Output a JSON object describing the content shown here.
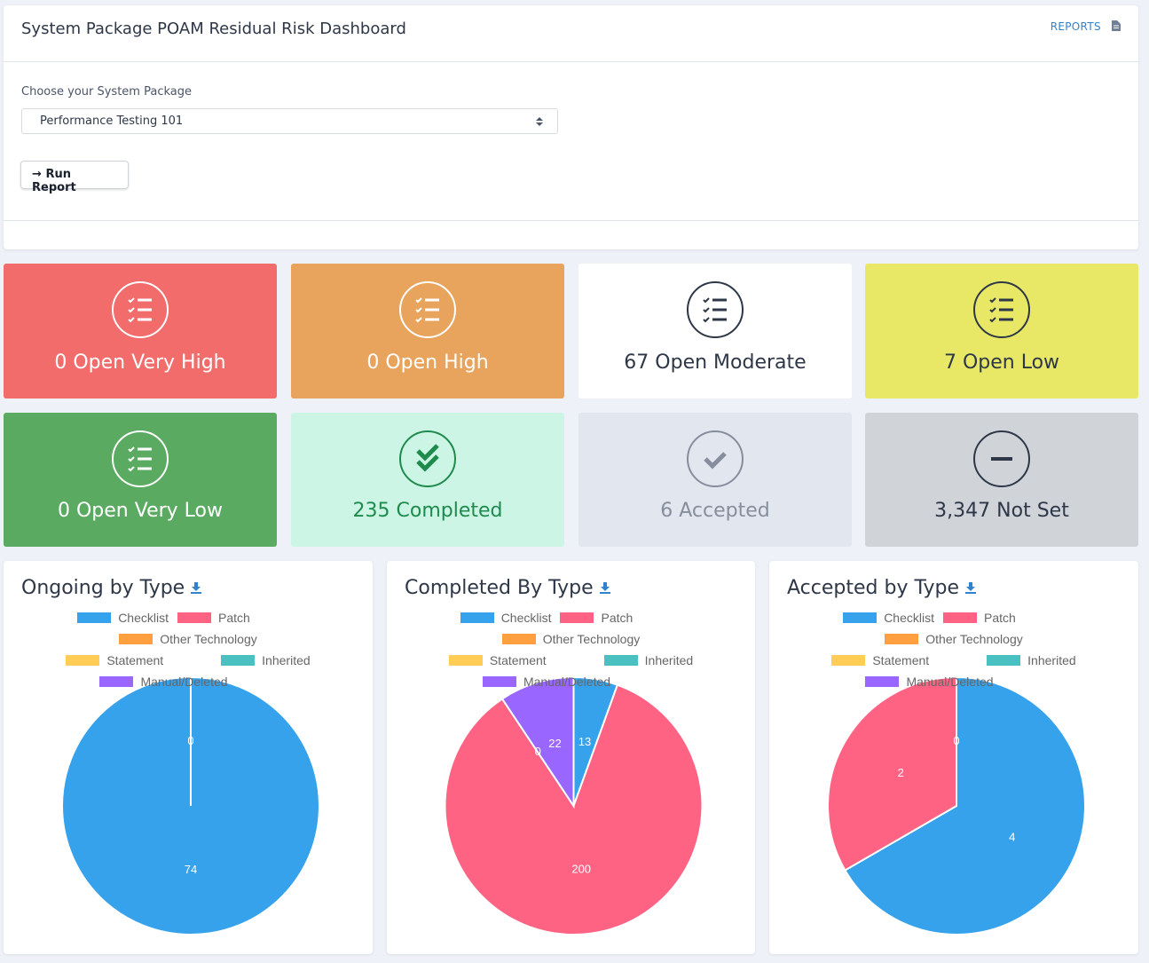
{
  "header": {
    "title": "System Package POAM Residual Risk Dashboard",
    "link": "REPORTS"
  },
  "form": {
    "label": "Choose your System Package",
    "selected": "Performance Testing 101",
    "button": "Run Report"
  },
  "cards": [
    {
      "count": 0,
      "label": "Open Very High"
    },
    {
      "count": 0,
      "label": "Open High"
    },
    {
      "count": 67,
      "label": "Open Moderate"
    },
    {
      "count": 7,
      "label": "Open Low"
    },
    {
      "count": 0,
      "label": "Open Very Low"
    },
    {
      "count": 235,
      "label": "Completed"
    },
    {
      "count": 6,
      "label": "Accepted"
    },
    {
      "count": "3,347",
      "label": "Not Set"
    }
  ],
  "chart_data": [
    {
      "type": "pie",
      "title": "Ongoing by Type",
      "categories": [
        "Checklist",
        "Patch",
        "Other Technology",
        "Statement",
        "Inherited",
        "Manual/Deleted"
      ],
      "colors": [
        "#36a2eb",
        "#ff6384",
        "#ff9f40",
        "#ffcd56",
        "#4bc0c0",
        "#9966ff"
      ],
      "values": [
        74,
        0,
        null,
        null,
        null,
        null
      ]
    },
    {
      "type": "pie",
      "title": "Completed By Type",
      "categories": [
        "Checklist",
        "Patch",
        "Other Technology",
        "Statement",
        "Inherited",
        "Manual/Deleted"
      ],
      "colors": [
        "#36a2eb",
        "#ff6384",
        "#ff9f40",
        "#ffcd56",
        "#4bc0c0",
        "#9966ff"
      ],
      "values": [
        13,
        200,
        null,
        null,
        0,
        22
      ]
    },
    {
      "type": "pie",
      "title": "Accepted by Type",
      "categories": [
        "Checklist",
        "Patch",
        "Other Technology",
        "Statement",
        "Inherited",
        "Manual/Deleted"
      ],
      "colors": [
        "#36a2eb",
        "#ff6384",
        "#ff9f40",
        "#ffcd56",
        "#4bc0c0",
        "#9966ff"
      ],
      "values": [
        4,
        2,
        null,
        null,
        0,
        null
      ]
    }
  ]
}
